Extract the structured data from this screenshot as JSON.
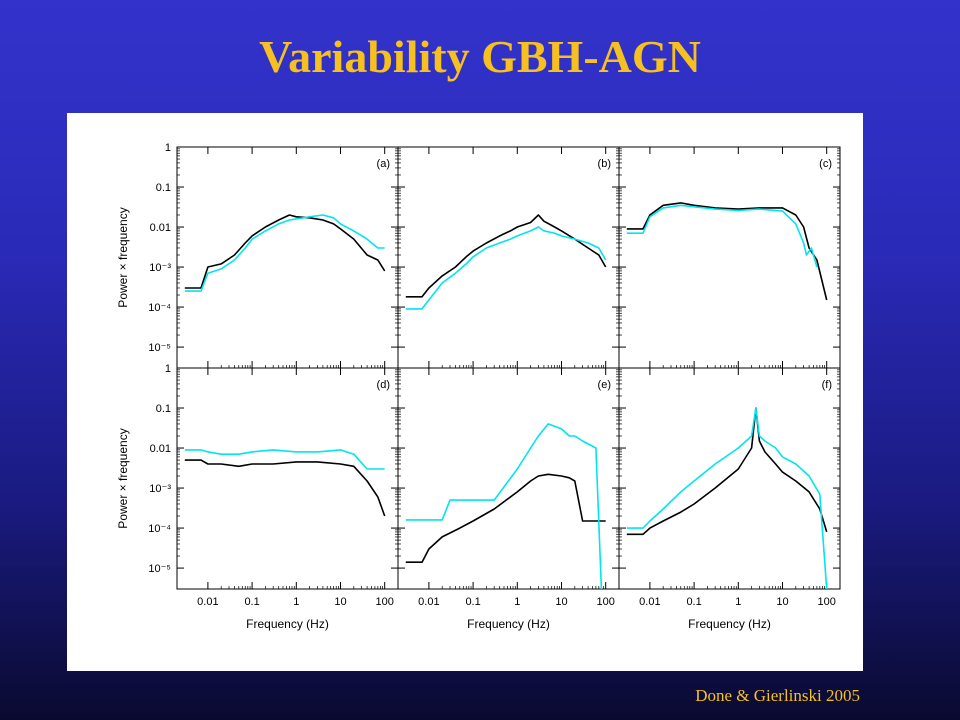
{
  "slide": {
    "title": "Variability GBH-AGN",
    "credit": "Done & Gierlinski 2005"
  },
  "colors": {
    "title": "#f5c020",
    "series_black": "#000000",
    "series_cyan": "#00e5ee"
  },
  "chart_data": {
    "type": "line",
    "layout": "3 columns x 2 rows of log-log power spectra",
    "ylabel": "Power × frequency",
    "xlabel": "Frequency (Hz)",
    "yscale": "log",
    "xscale": "log",
    "ylim": [
      3e-06,
      1
    ],
    "xlim": [
      0.002,
      200
    ],
    "ytick_labels": [
      "1",
      "0.1",
      "0.01",
      "10⁻³",
      "10⁻⁴",
      "10⁻⁵"
    ],
    "ytick_values": [
      1,
      0.1,
      0.01,
      0.001,
      0.0001,
      1e-05
    ],
    "xtick_labels": [
      "0.01",
      "0.1",
      "1",
      "10",
      "100"
    ],
    "xtick_values": [
      0.01,
      0.1,
      1,
      10,
      100
    ],
    "panels": [
      {
        "label": "(a)",
        "series": [
          {
            "color": "black",
            "x": [
              0.003,
              0.007,
              0.01,
              0.02,
              0.04,
              0.07,
              0.1,
              0.2,
              0.4,
              0.7,
              1,
              2,
              4,
              7,
              10,
              20,
              40,
              70,
              100
            ],
            "y": [
              0.0003,
              0.0003,
              0.001,
              0.0012,
              0.002,
              0.004,
              0.006,
              0.01,
              0.015,
              0.02,
              0.018,
              0.017,
              0.015,
              0.012,
              0.009,
              0.005,
              0.002,
              0.0015,
              0.0008
            ]
          },
          {
            "color": "cyan",
            "x": [
              0.003,
              0.007,
              0.01,
              0.02,
              0.04,
              0.07,
              0.1,
              0.2,
              0.4,
              0.7,
              1,
              2,
              4,
              7,
              10,
              20,
              40,
              70,
              100
            ],
            "y": [
              0.00025,
              0.00025,
              0.0007,
              0.0009,
              0.0015,
              0.003,
              0.005,
              0.008,
              0.012,
              0.015,
              0.016,
              0.018,
              0.02,
              0.017,
              0.012,
              0.008,
              0.005,
              0.003,
              0.003
            ]
          }
        ]
      },
      {
        "label": "(b)",
        "series": [
          {
            "color": "black",
            "x": [
              0.003,
              0.007,
              0.01,
              0.02,
              0.04,
              0.07,
              0.1,
              0.2,
              0.4,
              0.7,
              1,
              2,
              3,
              4,
              7,
              10,
              20,
              40,
              70,
              100
            ],
            "y": [
              0.00018,
              0.00018,
              0.0003,
              0.0006,
              0.001,
              0.0018,
              0.0025,
              0.004,
              0.006,
              0.008,
              0.01,
              0.013,
              0.02,
              0.014,
              0.01,
              0.008,
              0.005,
              0.003,
              0.002,
              0.001
            ]
          },
          {
            "color": "cyan",
            "x": [
              0.003,
              0.007,
              0.01,
              0.02,
              0.04,
              0.07,
              0.1,
              0.2,
              0.4,
              0.7,
              1,
              2,
              3,
              4,
              7,
              10,
              20,
              40,
              70,
              100
            ],
            "y": [
              9e-05,
              9e-05,
              0.00015,
              0.0004,
              0.0007,
              0.0012,
              0.0018,
              0.003,
              0.004,
              0.005,
              0.006,
              0.008,
              0.01,
              0.008,
              0.007,
              0.006,
              0.005,
              0.004,
              0.003,
              0.0015
            ]
          }
        ]
      },
      {
        "label": "(c)",
        "series": [
          {
            "color": "black",
            "x": [
              0.003,
              0.007,
              0.01,
              0.02,
              0.05,
              0.1,
              0.3,
              1,
              3,
              10,
              20,
              30,
              40,
              60,
              100
            ],
            "y": [
              0.009,
              0.009,
              0.02,
              0.035,
              0.04,
              0.035,
              0.03,
              0.028,
              0.03,
              0.03,
              0.02,
              0.01,
              0.003,
              0.0015,
              0.00015
            ]
          },
          {
            "color": "cyan",
            "x": [
              0.003,
              0.007,
              0.01,
              0.02,
              0.05,
              0.1,
              0.3,
              1,
              3,
              10,
              20,
              30,
              35,
              45,
              60
            ],
            "y": [
              0.007,
              0.007,
              0.018,
              0.03,
              0.035,
              0.032,
              0.028,
              0.026,
              0.028,
              0.025,
              0.012,
              0.004,
              0.002,
              0.003,
              0.001
            ]
          }
        ]
      },
      {
        "label": "(d)",
        "series": [
          {
            "color": "black",
            "x": [
              0.003,
              0.007,
              0.01,
              0.02,
              0.05,
              0.1,
              0.3,
              1,
              3,
              10,
              20,
              40,
              70,
              100
            ],
            "y": [
              0.005,
              0.005,
              0.004,
              0.004,
              0.0035,
              0.004,
              0.004,
              0.0045,
              0.0045,
              0.004,
              0.0035,
              0.0015,
              0.0006,
              0.0002
            ]
          },
          {
            "color": "cyan",
            "x": [
              0.003,
              0.007,
              0.01,
              0.02,
              0.05,
              0.1,
              0.3,
              1,
              3,
              10,
              20,
              40,
              70,
              100
            ],
            "y": [
              0.009,
              0.009,
              0.008,
              0.007,
              0.007,
              0.008,
              0.009,
              0.008,
              0.008,
              0.009,
              0.007,
              0.003,
              0.003,
              0.003
            ]
          }
        ]
      },
      {
        "label": "(e)",
        "series": [
          {
            "color": "black",
            "x": [
              0.003,
              0.007,
              0.01,
              0.02,
              0.05,
              0.1,
              0.3,
              1,
              2,
              3,
              5,
              10,
              15,
              20,
              30,
              100
            ],
            "y": [
              1.4e-05,
              1.4e-05,
              3e-05,
              6e-05,
              0.0001,
              0.00015,
              0.0003,
              0.0008,
              0.0015,
              0.002,
              0.0022,
              0.002,
              0.0018,
              0.0015,
              0.00015,
              0.00015
            ]
          },
          {
            "color": "cyan",
            "x": [
              0.003,
              0.007,
              0.01,
              0.02,
              0.03,
              0.05,
              0.1,
              0.3,
              1,
              2,
              3,
              5,
              10,
              15,
              20,
              30,
              60,
              80
            ],
            "y": [
              0.00016,
              0.00016,
              0.00016,
              0.00016,
              0.0005,
              0.0005,
              0.0005,
              0.0005,
              0.003,
              0.01,
              0.02,
              0.04,
              0.03,
              0.02,
              0.02,
              0.015,
              0.01,
              3e-06
            ]
          }
        ]
      },
      {
        "label": "(f)",
        "series": [
          {
            "color": "black",
            "x": [
              0.003,
              0.007,
              0.01,
              0.02,
              0.05,
              0.1,
              0.3,
              1,
              2,
              2.5,
              3,
              4,
              7,
              10,
              20,
              40,
              70,
              100
            ],
            "y": [
              7e-05,
              7e-05,
              0.0001,
              0.00015,
              0.00025,
              0.0004,
              0.001,
              0.003,
              0.01,
              0.1,
              0.015,
              0.008,
              0.004,
              0.0025,
              0.0015,
              0.0008,
              0.0003,
              8e-05
            ]
          },
          {
            "color": "cyan",
            "x": [
              0.003,
              0.007,
              0.01,
              0.02,
              0.05,
              0.1,
              0.3,
              1,
              2,
              2.5,
              3,
              4,
              7,
              10,
              20,
              40,
              70,
              100
            ],
            "y": [
              0.0001,
              0.0001,
              0.00015,
              0.0003,
              0.0008,
              0.0015,
              0.004,
              0.01,
              0.02,
              0.1,
              0.02,
              0.015,
              0.01,
              0.006,
              0.004,
              0.002,
              0.0007,
              3e-06
            ]
          }
        ]
      }
    ]
  }
}
